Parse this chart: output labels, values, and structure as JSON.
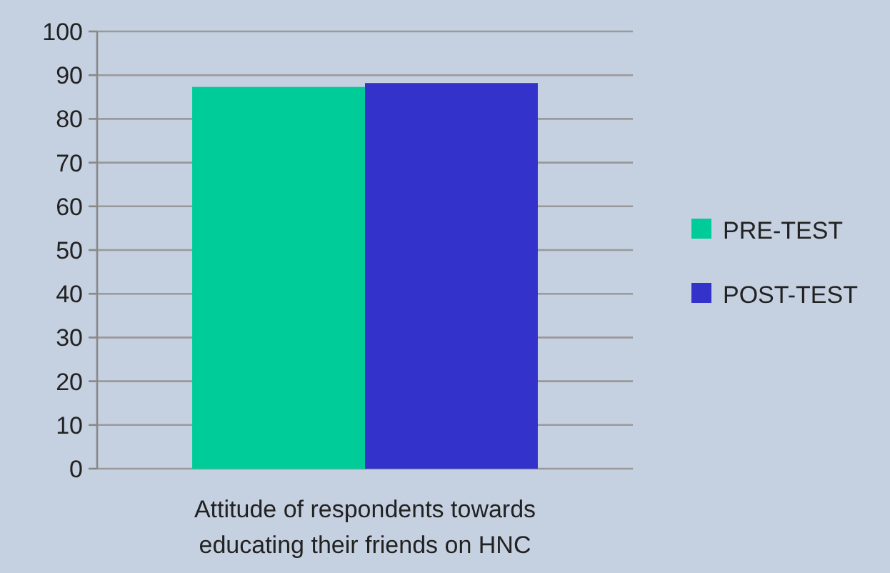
{
  "chart_data": {
    "type": "bar",
    "categories": [
      "Attitude of respondents towards educating their friends on HNC"
    ],
    "series": [
      {
        "name": "PRE-TEST",
        "color": "#00cc99",
        "values": [
          87.3
        ]
      },
      {
        "name": "POST-TEST",
        "color": "#3333cc",
        "values": [
          88.2
        ]
      }
    ],
    "ylim": [
      0,
      100
    ],
    "yticks": [
      0,
      10,
      20,
      30,
      40,
      50,
      60,
      70,
      80,
      90,
      100
    ],
    "grid": "y",
    "legend": "right"
  }
}
